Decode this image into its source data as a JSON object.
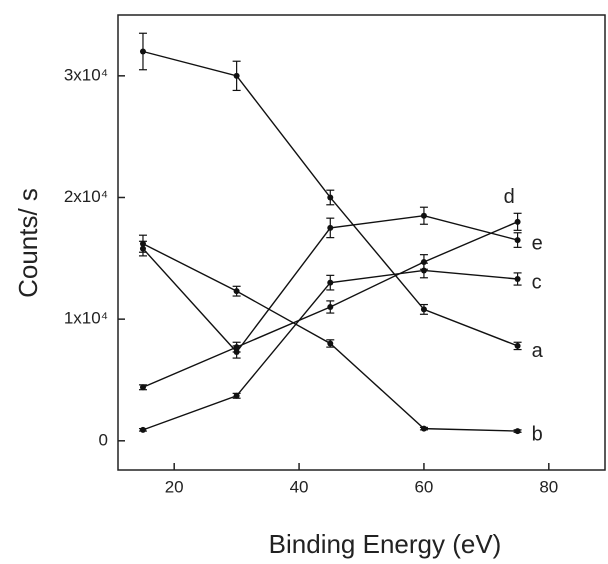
{
  "chart_data": {
    "type": "line",
    "x_label": "Binding Energy (eV)",
    "y_label": "Counts/ s",
    "x": [
      15,
      30,
      45,
      60,
      75
    ],
    "series": [
      {
        "name": "a",
        "color": "#111",
        "values": [
          32000,
          30000,
          20000,
          10800,
          7800
        ],
        "errors": [
          1500,
          1200,
          600,
          400,
          300
        ]
      },
      {
        "name": "b",
        "color": "#111",
        "values": [
          16200,
          12300,
          8000,
          1000,
          800
        ],
        "errors": [
          700,
          400,
          300,
          100,
          100
        ]
      },
      {
        "name": "c",
        "color": "#111",
        "values": [
          900,
          3700,
          13000,
          14000,
          13300
        ],
        "errors": [
          100,
          200,
          600,
          600,
          500
        ]
      },
      {
        "name": "d",
        "color": "#111",
        "values": [
          4400,
          7700,
          11000,
          14700,
          18000
        ],
        "errors": [
          200,
          400,
          500,
          600,
          700
        ]
      },
      {
        "name": "e",
        "color": "#111",
        "values": [
          15800,
          7300,
          17500,
          18500,
          16500
        ],
        "errors": [
          600,
          500,
          800,
          700,
          600
        ]
      }
    ],
    "xlim": [
      11,
      89
    ],
    "xticks": [
      20,
      40,
      60,
      80
    ],
    "ylim": [
      -2400,
      35000
    ],
    "yticks": [
      0,
      {
        "value": 10000,
        "label": "1x10⁴"
      },
      {
        "value": 20000,
        "label": "2x10⁴"
      },
      {
        "value": 30000,
        "label": "3x10⁴"
      }
    ]
  }
}
